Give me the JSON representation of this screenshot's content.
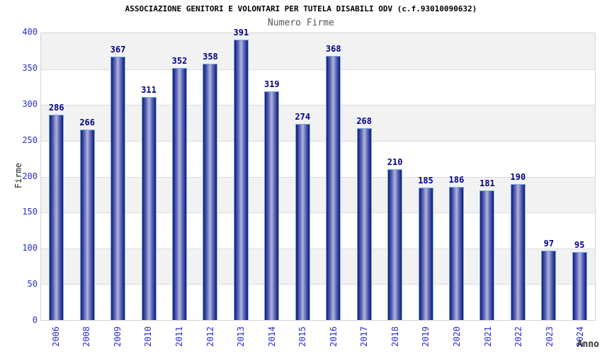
{
  "chart_data": {
    "type": "bar",
    "title": "ASSOCIAZIONE GENITORI E VOLONTARI PER TUTELA DISABILI ODV (c.f.93010090632)",
    "subtitle": "Numero Firme",
    "xlabel": "Anno",
    "ylabel": "Firme",
    "categories": [
      "2006",
      "2008",
      "2009",
      "2010",
      "2011",
      "2012",
      "2013",
      "2014",
      "2015",
      "2016",
      "2017",
      "2018",
      "2019",
      "2020",
      "2021",
      "2022",
      "2023",
      "2024"
    ],
    "values": [
      286,
      266,
      367,
      311,
      352,
      358,
      391,
      319,
      274,
      368,
      268,
      210,
      185,
      186,
      181,
      190,
      97,
      95
    ],
    "ylim": [
      0,
      400
    ],
    "ytick_step": 50,
    "yticks": [
      0,
      50,
      100,
      150,
      200,
      250,
      300,
      350,
      400
    ],
    "grid": "horizontal gridlines every 50 with alternating shaded bands",
    "legend": "none",
    "colors": {
      "tick_label": "#2b2bd4",
      "value_label": "#00008b",
      "title": "#000000",
      "subtitle": "#555555",
      "axis_label": "#333333",
      "bar_edge": "#141e78",
      "bar_mid": "#b4bae2",
      "bar_border": "#74aede",
      "band_shaded": "#f2f2f2",
      "band_plain": "#ffffff",
      "gridline": "#dcdcdc",
      "plot_border": "#d4d4d4"
    }
  }
}
